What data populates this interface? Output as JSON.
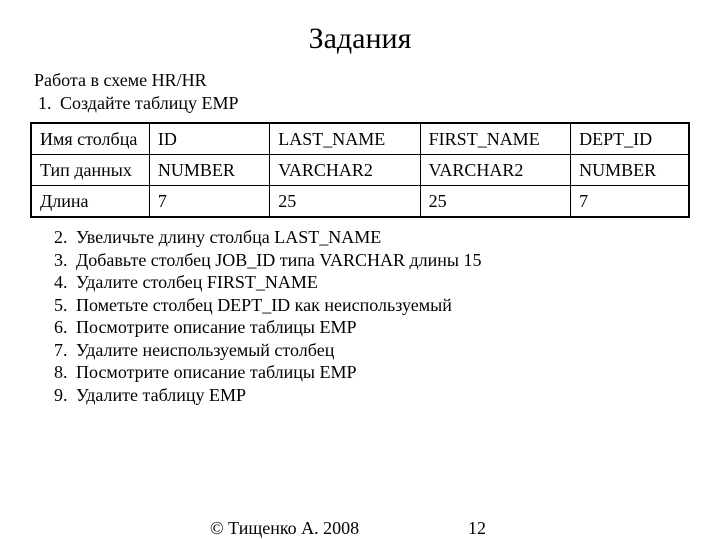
{
  "title": "Задания",
  "intro": "Работа в схеме HR/HR",
  "first_item": "Создайте таблицу EMP",
  "table": {
    "row_labels": [
      "Имя столбца",
      "Тип данных",
      "Длина"
    ],
    "columns": [
      "ID",
      "LAST_NAME",
      "FIRST_NAME",
      "DEPT_ID"
    ],
    "types": [
      "NUMBER",
      "VARCHAR2",
      "VARCHAR2",
      "NUMBER"
    ],
    "lengths": [
      "7",
      "25",
      "25",
      "7"
    ]
  },
  "tasks": [
    "Увеличьте длину столбца LAST_NAME",
    "Добавьте столбец JOB_ID типа VARCHAR длины 15",
    "Удалите столбец FIRST_NAME",
    "Пометьте столбец DEPT_ID как неиспользуемый",
    "Посмотрите описание таблицы EMP",
    "Удалите неиспользуемый столбец",
    "Посмотрите описание таблицы EMP",
    "Удалите таблицу EMP"
  ],
  "footer": {
    "copyright": "© Тищенко А. 2008",
    "page": "12"
  },
  "style": {
    "background_color": "#ffffff",
    "text_color": "#000000",
    "border_color": "#000000",
    "font_family": "Times New Roman",
    "title_fontsize": 30,
    "body_fontsize": 18
  }
}
